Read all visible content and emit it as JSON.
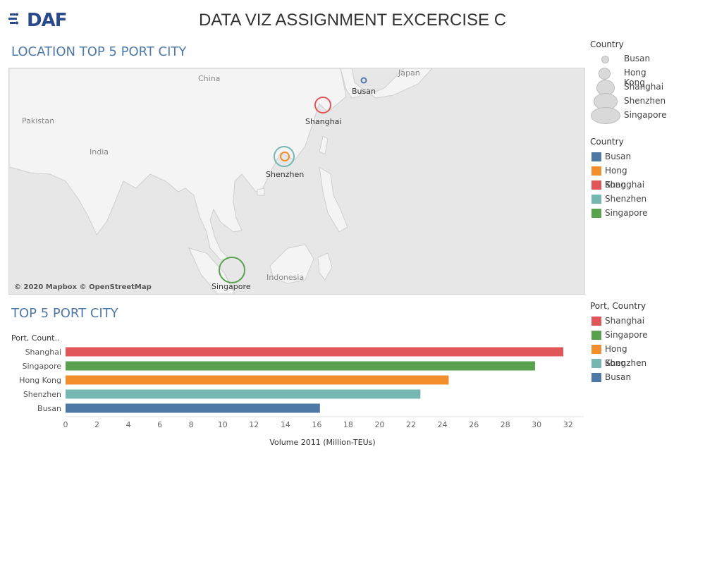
{
  "logo": {
    "text": "DAF"
  },
  "page": {
    "title": "DATA VIZ ASSIGNMENT EXCERCISE C"
  },
  "map": {
    "title": "LOCATION TOP 5 PORT CITY",
    "attribution": "© 2020 Mapbox © OpenStreetMap",
    "region_labels": [
      "China",
      "Japan",
      "Pakistan",
      "India",
      "Indonesia"
    ],
    "cities": [
      {
        "name": "Busan",
        "color": "#4e79a7",
        "size_rank": 1
      },
      {
        "name": "Shanghai",
        "color": "#e15759",
        "size_rank": 5
      },
      {
        "name": "Shenzhen",
        "color": "#76b7b2",
        "size_rank": 3
      },
      {
        "name": "Hong Kong",
        "color": "#f28e2b",
        "size_rank": 2
      },
      {
        "name": "Singapore",
        "color": "#59a14f",
        "size_rank": 4
      }
    ]
  },
  "legends": {
    "size": {
      "title": "Country",
      "items": [
        "Busan",
        "Hong Kong",
        "Shanghai",
        "Shenzhen",
        "Singapore"
      ]
    },
    "color": {
      "title": "Country",
      "items": [
        {
          "label": "Busan",
          "color": "#4e79a7"
        },
        {
          "label": "Hong Kong",
          "color": "#f28e2b"
        },
        {
          "label": "Shanghai",
          "color": "#e15759"
        },
        {
          "label": "Shenzhen",
          "color": "#76b7b2"
        },
        {
          "label": "Singapore",
          "color": "#59a14f"
        }
      ]
    },
    "bar": {
      "title": "Port, Country",
      "items": [
        {
          "label": "Shanghai",
          "color": "#e15759"
        },
        {
          "label": "Singapore",
          "color": "#59a14f"
        },
        {
          "label": "Hong Kong",
          "color": "#f28e2b"
        },
        {
          "label": "Shenzhen",
          "color": "#76b7b2"
        },
        {
          "label": "Busan",
          "color": "#4e79a7"
        }
      ]
    }
  },
  "bar_section": {
    "title": "TOP 5 PORT CITY"
  },
  "chart_data": {
    "type": "bar",
    "orientation": "horizontal",
    "row_header": "Port, Count..",
    "categories": [
      "Shanghai",
      "Singapore",
      "Hong Kong",
      "Shenzhen",
      "Busan"
    ],
    "values": [
      31.7,
      29.9,
      24.4,
      22.6,
      16.2
    ],
    "colors": [
      "#e15759",
      "#59a14f",
      "#f28e2b",
      "#76b7b2",
      "#4e79a7"
    ],
    "xlabel": "Volume 2011 (Million-TEUs)",
    "xlim": [
      0,
      33
    ],
    "xticks": [
      0,
      2,
      4,
      6,
      8,
      10,
      12,
      14,
      16,
      18,
      20,
      22,
      24,
      26,
      28,
      30,
      32
    ],
    "grid": false
  }
}
